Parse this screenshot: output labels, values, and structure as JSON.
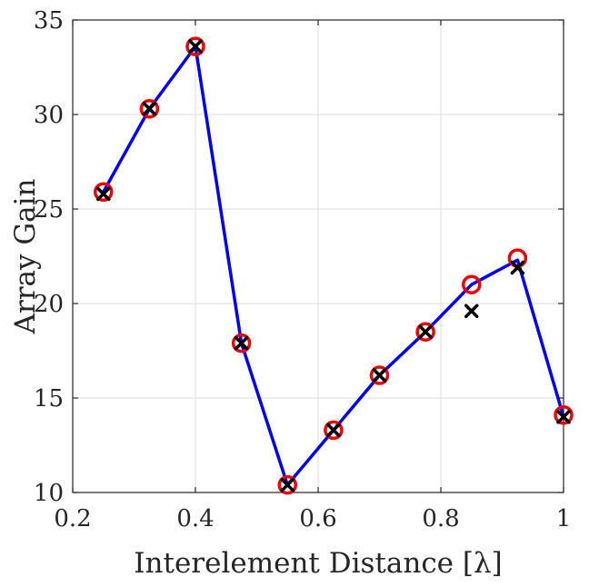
{
  "chart_data": {
    "type": "line",
    "title": "",
    "xlabel": "Interelement Distance [λ]",
    "ylabel": "Array Gain",
    "xlim": [
      0.2,
      1.0
    ],
    "ylim": [
      10,
      35
    ],
    "xticks": [
      0.2,
      0.4,
      0.6,
      0.8,
      1.0
    ],
    "xtick_labels": [
      "0.2",
      "0.4",
      "0.6",
      "0.8",
      "1"
    ],
    "yticks": [
      10,
      15,
      20,
      25,
      30,
      35
    ],
    "ytick_labels": [
      "10",
      "15",
      "20",
      "25",
      "30",
      "35"
    ],
    "grid": true,
    "legend": "none",
    "x": [
      0.25,
      0.325,
      0.4,
      0.475,
      0.55,
      0.625,
      0.7,
      0.775,
      0.85,
      0.925,
      1.0
    ],
    "series": [
      {
        "style": "line",
        "color": "#0000ee",
        "values": [
          25.9,
          30.3,
          33.6,
          17.9,
          10.4,
          13.3,
          16.2,
          18.5,
          21.0,
          22.3,
          14.0
        ]
      },
      {
        "style": "circle-marker",
        "color": "#ee0000",
        "values": [
          25.9,
          30.3,
          33.6,
          17.9,
          10.4,
          13.3,
          16.2,
          18.5,
          21.0,
          22.4,
          14.1
        ]
      },
      {
        "style": "x-marker",
        "color": "#000000",
        "values": [
          25.8,
          30.3,
          33.6,
          17.9,
          10.4,
          13.3,
          16.2,
          18.5,
          19.6,
          21.9,
          14.0
        ]
      }
    ]
  }
}
